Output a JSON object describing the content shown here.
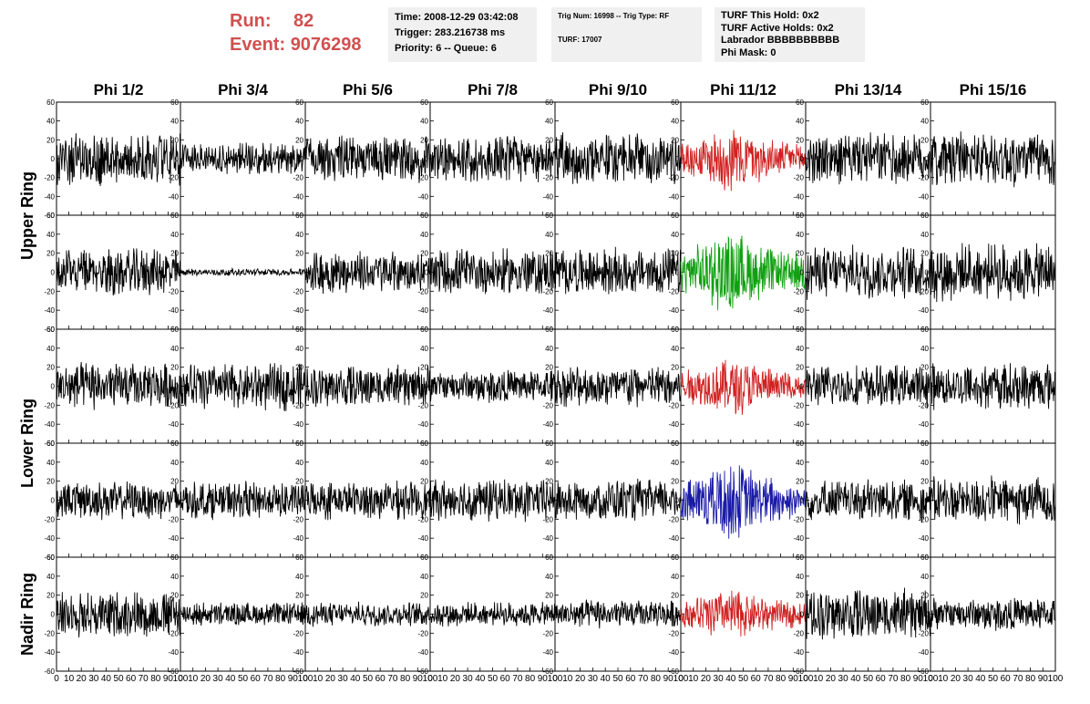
{
  "run_info": {
    "run_label": "Run:",
    "run_value": "82",
    "event_label": "Event:",
    "event_value": "9076298"
  },
  "time_box": {
    "time": "Time: 2008-12-29 03:42:08",
    "trigger": "Trigger: 283.216738 ms",
    "priority": "Priority: 6 -- Queue: 6"
  },
  "trig_box": {
    "trig": "Trig Num: 16998 -- Trig Type: RF",
    "turf": "TURF: 17007"
  },
  "turf_box": {
    "hold": "TURF This Hold: 0x2",
    "active": "TURF Active Holds: 0x2",
    "labrador": "Labrador BBBBBBBBBB",
    "phimask": "Phi Mask: 0"
  },
  "chart_data": {
    "type": "line",
    "columns": [
      "Phi 1/2",
      "Phi 3/4",
      "Phi 5/6",
      "Phi 7/8",
      "Phi 9/10",
      "Phi 11/12",
      "Phi 13/14",
      "Phi 15/16"
    ],
    "row_groups": [
      {
        "label": "Upper Ring",
        "rows": [
          0,
          1
        ]
      },
      {
        "label": "Lower Ring",
        "rows": [
          2,
          3
        ]
      },
      {
        "label": "Nadir Ring",
        "rows": [
          4
        ]
      }
    ],
    "ylim": [
      -60,
      60
    ],
    "xlim": [
      0,
      100
    ],
    "yticks": [
      -60,
      -40,
      -20,
      0,
      20,
      40,
      60
    ],
    "xticks": [
      0,
      10,
      20,
      30,
      40,
      50,
      60,
      70,
      80,
      90,
      100
    ],
    "default_color": "#000000",
    "highlighted": [
      {
        "row": 0,
        "col": 5,
        "color": "#d02020"
      },
      {
        "row": 1,
        "col": 5,
        "color": "#10a010"
      },
      {
        "row": 2,
        "col": 5,
        "color": "#d02020"
      },
      {
        "row": 3,
        "col": 5,
        "color": "#1a1aa8"
      },
      {
        "row": 4,
        "col": 5,
        "color": "#d02020"
      }
    ],
    "amplitude": [
      [
        22,
        14,
        20,
        20,
        22,
        20,
        22,
        24
      ],
      [
        20,
        3,
        18,
        20,
        20,
        25,
        22,
        24
      ],
      [
        20,
        20,
        18,
        14,
        18,
        18,
        18,
        20
      ],
      [
        16,
        16,
        16,
        18,
        18,
        24,
        18,
        20
      ],
      [
        20,
        10,
        10,
        10,
        12,
        16,
        22,
        14
      ]
    ]
  }
}
